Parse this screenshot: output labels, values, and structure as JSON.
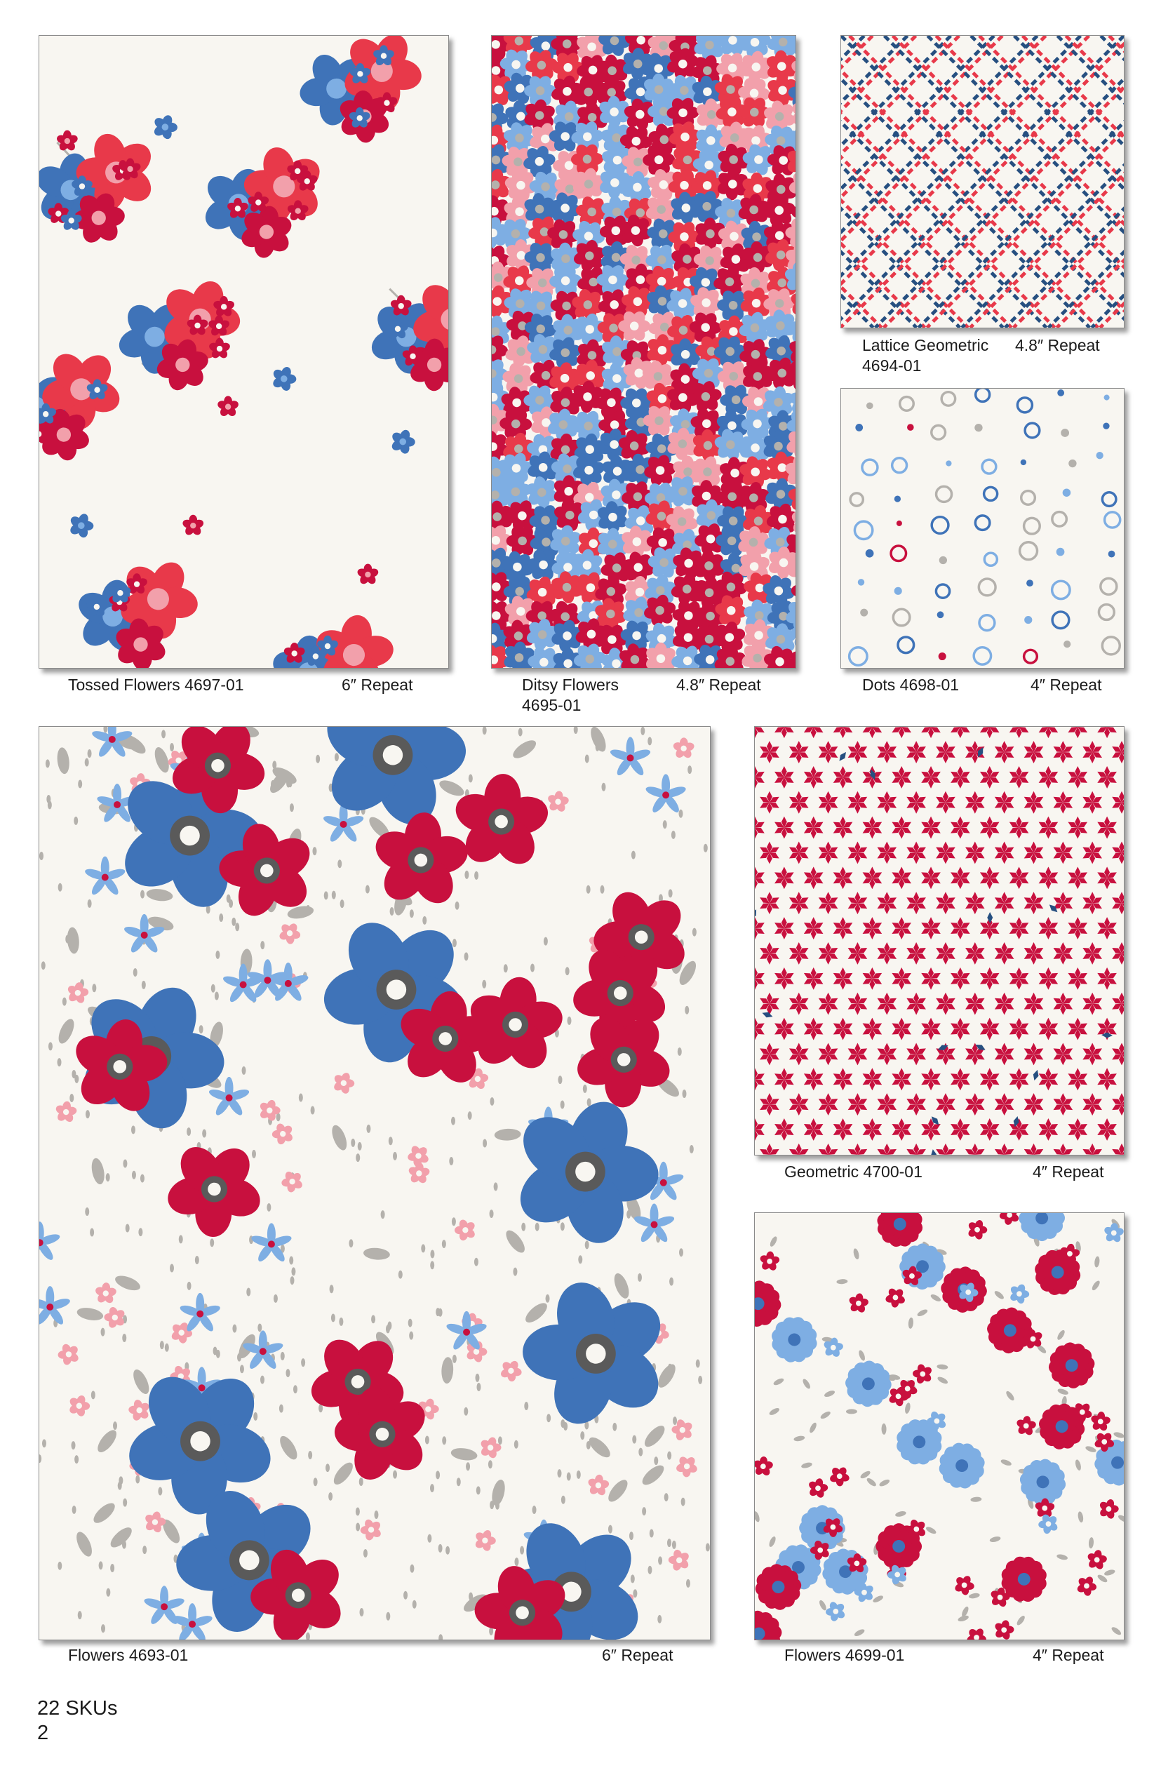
{
  "swatches": [
    {
      "id": "tossed",
      "name_line1": "Tossed Flowers 4697-01",
      "name_line2": "",
      "repeat": "6″ Repeat"
    },
    {
      "id": "ditsy",
      "name_line1": "Ditsy Flowers",
      "name_line2": "4695-01",
      "repeat": "4.8″ Repeat"
    },
    {
      "id": "lattice",
      "name_line1": "Lattice Geometric",
      "name_line2": "4694-01",
      "repeat": "4.8″ Repeat"
    },
    {
      "id": "dots",
      "name_line1": "Dots 4698-01",
      "name_line2": "",
      "repeat": "4″ Repeat"
    },
    {
      "id": "flowers-large",
      "name_line1": "Flowers 4693-01",
      "name_line2": "",
      "repeat": "6″ Repeat"
    },
    {
      "id": "geometric",
      "name_line1": "Geometric 4700-01",
      "name_line2": "",
      "repeat": "4″ Repeat"
    },
    {
      "id": "flowers-small",
      "name_line1": "Flowers 4699-01",
      "name_line2": "",
      "repeat": "4″ Repeat"
    }
  ],
  "footer": {
    "sku_count": "22 SKUs",
    "page_number": "2"
  },
  "colors": {
    "background_cream": "#f8f6f1",
    "red": "#c8103e",
    "coral_red": "#e8394a",
    "blue": "#3f73b8",
    "light_blue": "#7eaee3",
    "pink": "#f2a0ab",
    "gray": "#b4b1ac",
    "dark_gray": "#5a5a5a",
    "navy": "#264f80"
  }
}
